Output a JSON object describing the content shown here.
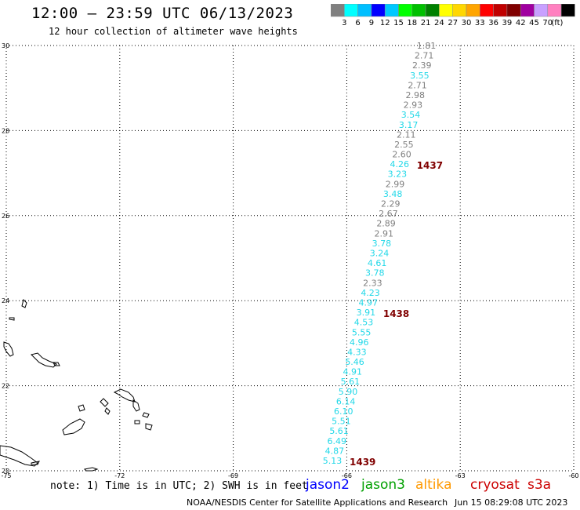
{
  "header": {
    "title": "12:00 – 23:59 UTC 06/13/2023",
    "subtitle": "12 hour collection of altimeter wave heights"
  },
  "legend": {
    "labels": [
      "3",
      "6",
      "9",
      "12",
      "15",
      "18",
      "21",
      "24",
      "27",
      "30",
      "33",
      "36",
      "39",
      "42",
      "45",
      "70",
      "(ft)"
    ],
    "colors": [
      "#808080",
      "#00ffff",
      "#00bfff",
      "#0000ff",
      "#00c8ff",
      "#00ff00",
      "#00c000",
      "#008000",
      "#ffff00",
      "#ffd700",
      "#ffa500",
      "#ff0000",
      "#c00000",
      "#800000",
      "#a000a0",
      "#c8a0ff",
      "#ff80c0",
      "#000000"
    ]
  },
  "axes": {
    "lat_labels": [
      "30",
      "28",
      "26",
      "24",
      "22",
      "20"
    ],
    "lon_labels": [
      "-75",
      "-72",
      "-69",
      "-66",
      "-63",
      "-60"
    ]
  },
  "observations": [
    {
      "value": "1.81",
      "color": "#808080"
    },
    {
      "value": "2.71",
      "color": "#808080"
    },
    {
      "value": "2.39",
      "color": "#808080"
    },
    {
      "value": "3.55",
      "color": "#22d8e8"
    },
    {
      "value": "2.71",
      "color": "#808080"
    },
    {
      "value": "2.98",
      "color": "#808080"
    },
    {
      "value": "2.93",
      "color": "#808080"
    },
    {
      "value": "3.54",
      "color": "#22d8e8"
    },
    {
      "value": "3.17",
      "color": "#22d8e8"
    },
    {
      "value": "2.11",
      "color": "#808080"
    },
    {
      "value": "2.55",
      "color": "#808080"
    },
    {
      "value": "2.60",
      "color": "#808080"
    },
    {
      "value": "4.26",
      "color": "#22d8e8"
    },
    {
      "value": "3.23",
      "color": "#22d8e8"
    },
    {
      "value": "2.99",
      "color": "#808080"
    },
    {
      "value": "3.48",
      "color": "#22d8e8"
    },
    {
      "value": "2.29",
      "color": "#808080"
    },
    {
      "value": "2.67",
      "color": "#808080"
    },
    {
      "value": "2.89",
      "color": "#808080"
    },
    {
      "value": "2.91",
      "color": "#808080"
    },
    {
      "value": "3.78",
      "color": "#22d8e8"
    },
    {
      "value": "3.24",
      "color": "#22d8e8"
    },
    {
      "value": "4.61",
      "color": "#22d8e8"
    },
    {
      "value": "3.78",
      "color": "#22d8e8"
    },
    {
      "value": "2.33",
      "color": "#808080"
    },
    {
      "value": "4.23",
      "color": "#22d8e8"
    },
    {
      "value": "4.97",
      "color": "#22d8e8"
    },
    {
      "value": "3.91",
      "color": "#22d8e8"
    },
    {
      "value": "4.53",
      "color": "#22d8e8"
    },
    {
      "value": "5.55",
      "color": "#22d8e8"
    },
    {
      "value": "4.96",
      "color": "#22d8e8"
    },
    {
      "value": "4.33",
      "color": "#22d8e8"
    },
    {
      "value": "5.46",
      "color": "#22d8e8"
    },
    {
      "value": "4.91",
      "color": "#22d8e8"
    },
    {
      "value": "5.61",
      "color": "#22d8e8"
    },
    {
      "value": "5.90",
      "color": "#22d8e8"
    },
    {
      "value": "6.14",
      "color": "#22d8e8"
    },
    {
      "value": "6.10",
      "color": "#22d8e8"
    },
    {
      "value": "5.51",
      "color": "#22d8e8"
    },
    {
      "value": "5.61",
      "color": "#22d8e8"
    },
    {
      "value": "6.49",
      "color": "#22d8e8"
    },
    {
      "value": "4.87",
      "color": "#22d8e8"
    },
    {
      "value": "5.13",
      "color": "#22d8e8"
    }
  ],
  "time_marks": [
    {
      "label": "1437",
      "color": "#800000"
    },
    {
      "label": "1438",
      "color": "#800000"
    },
    {
      "label": "1439",
      "color": "#800000"
    }
  ],
  "footer": {
    "note": "note: 1) Time is in UTC; 2) SWH is in feet",
    "satellites": [
      {
        "name": "jason2",
        "color": "#0000ff"
      },
      {
        "name": "jason3",
        "color": "#00a000"
      },
      {
        "name": "altika",
        "color": "#ff9900"
      },
      {
        "name": "cryosat",
        "color": "#cc0000"
      },
      {
        "name": "s3a",
        "color": "#cc0000"
      }
    ],
    "credit": "NOAA/NESDIS Center for Satellite Applications and Research",
    "timestamp": "Jun 15 08:29:08 UTC 2023"
  }
}
